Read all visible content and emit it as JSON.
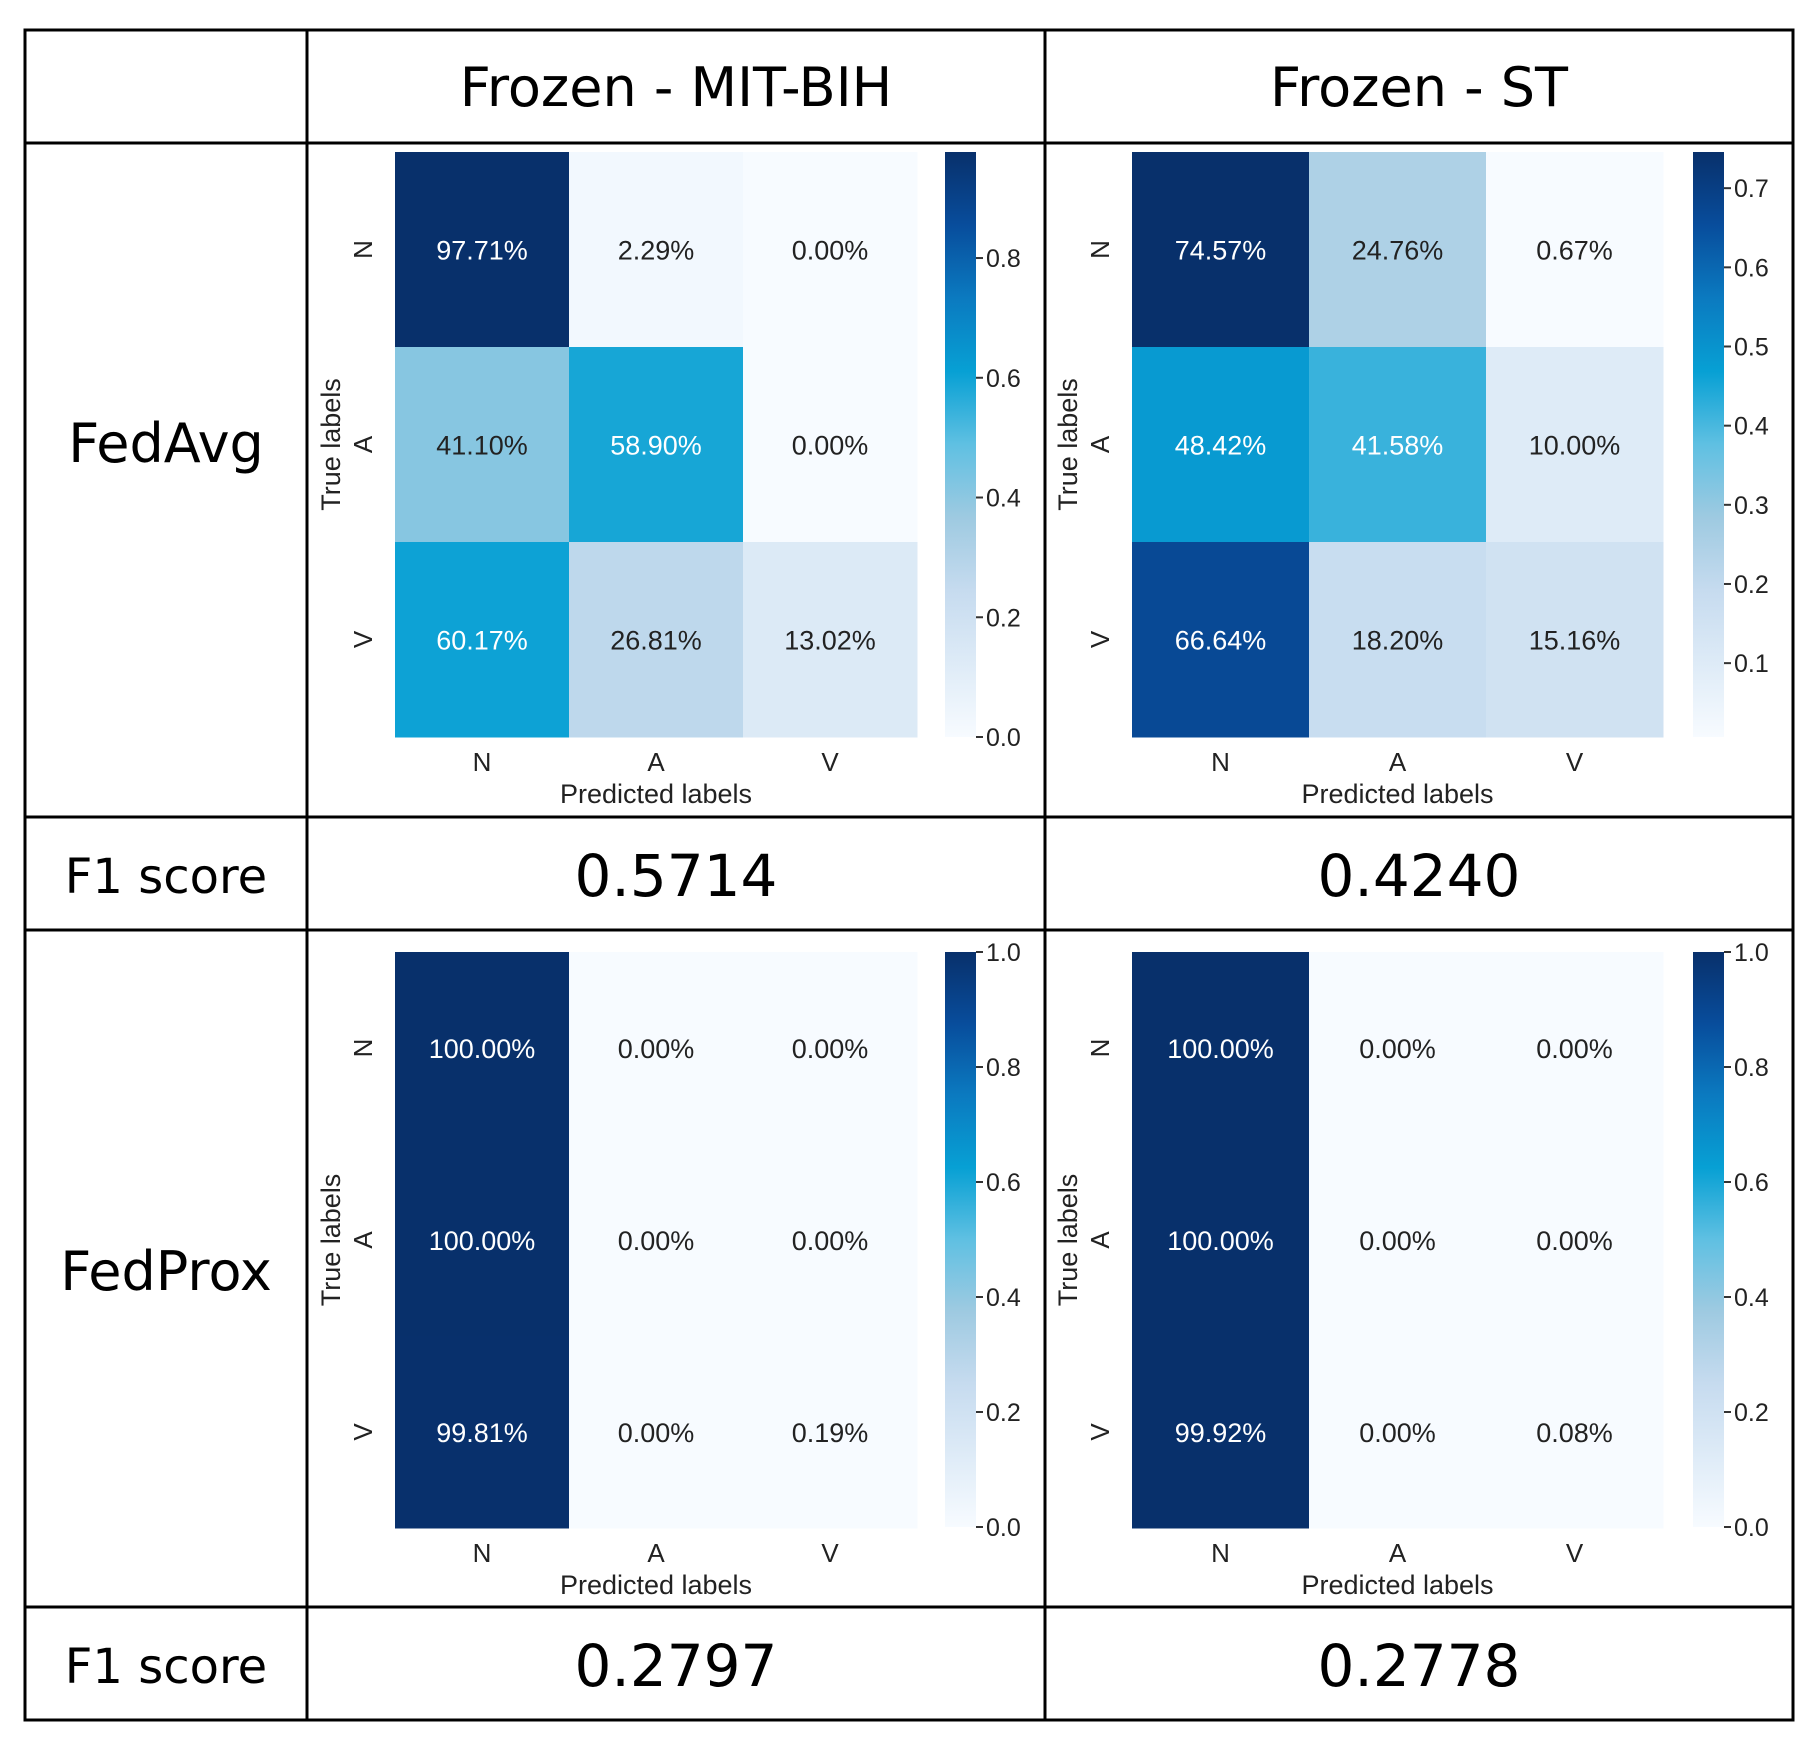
{
  "table": {
    "col_headers": [
      "Frozen - MIT-BIH",
      "Frozen - ST"
    ],
    "row_labels": [
      "FedAvg",
      "FedProx"
    ],
    "f1_label": "F1 score",
    "f1_scores": [
      [
        "0.5714",
        "0.4240"
      ],
      [
        "0.2797",
        "0.2778"
      ]
    ]
  },
  "colormap": "Blues",
  "chart_data": [
    {
      "type": "heatmap",
      "method": "FedAvg",
      "dataset": "Frozen - MIT-BIH",
      "xlabel": "Predicted labels",
      "ylabel": "True labels",
      "x_categories": [
        "N",
        "A",
        "V"
      ],
      "y_categories": [
        "N",
        "A",
        "V"
      ],
      "values": [
        [
          97.71,
          2.29,
          0.0
        ],
        [
          41.1,
          58.9,
          0.0
        ],
        [
          60.17,
          26.81,
          13.02
        ]
      ],
      "cell_labels": [
        [
          "97.71%",
          "2.29%",
          "0.00%"
        ],
        [
          "41.10%",
          "58.90%",
          "0.00%"
        ],
        [
          "60.17%",
          "26.81%",
          "13.02%"
        ]
      ],
      "colorbar": {
        "min": 0.0,
        "max": 0.9771,
        "ticks": [
          "0.0",
          "0.2",
          "0.4",
          "0.6",
          "0.8"
        ]
      }
    },
    {
      "type": "heatmap",
      "method": "FedAvg",
      "dataset": "Frozen - ST",
      "xlabel": "Predicted labels",
      "ylabel": "True labels",
      "x_categories": [
        "N",
        "A",
        "V"
      ],
      "y_categories": [
        "N",
        "A",
        "V"
      ],
      "values": [
        [
          74.57,
          24.76,
          0.67
        ],
        [
          48.42,
          41.58,
          10.0
        ],
        [
          66.64,
          18.2,
          15.16
        ]
      ],
      "cell_labels": [
        [
          "74.57%",
          "24.76%",
          "0.67%"
        ],
        [
          "48.42%",
          "41.58%",
          "10.00%"
        ],
        [
          "66.64%",
          "18.20%",
          "15.16%"
        ]
      ],
      "colorbar": {
        "min": 0.0067,
        "max": 0.7457,
        "ticks": [
          "0.1",
          "0.2",
          "0.3",
          "0.4",
          "0.5",
          "0.6",
          "0.7"
        ]
      }
    },
    {
      "type": "heatmap",
      "method": "FedProx",
      "dataset": "Frozen - MIT-BIH",
      "xlabel": "Predicted labels",
      "ylabel": "True labels",
      "x_categories": [
        "N",
        "A",
        "V"
      ],
      "y_categories": [
        "N",
        "A",
        "V"
      ],
      "values": [
        [
          100.0,
          0.0,
          0.0
        ],
        [
          100.0,
          0.0,
          0.0
        ],
        [
          99.81,
          0.0,
          0.19
        ]
      ],
      "cell_labels": [
        [
          "100.00%",
          "0.00%",
          "0.00%"
        ],
        [
          "100.00%",
          "0.00%",
          "0.00%"
        ],
        [
          "99.81%",
          "0.00%",
          "0.19%"
        ]
      ],
      "colorbar": {
        "min": 0.0,
        "max": 1.0,
        "ticks": [
          "0.0",
          "0.2",
          "0.4",
          "0.6",
          "0.8",
          "1.0"
        ]
      }
    },
    {
      "type": "heatmap",
      "method": "FedProx",
      "dataset": "Frozen - ST",
      "xlabel": "Predicted labels",
      "ylabel": "True labels",
      "x_categories": [
        "N",
        "A",
        "V"
      ],
      "y_categories": [
        "N",
        "A",
        "V"
      ],
      "values": [
        [
          100.0,
          0.0,
          0.0
        ],
        [
          100.0,
          0.0,
          0.0
        ],
        [
          99.92,
          0.0,
          0.08
        ]
      ],
      "cell_labels": [
        [
          "100.00%",
          "0.00%",
          "0.00%"
        ],
        [
          "100.00%",
          "0.00%",
          "0.00%"
        ],
        [
          "99.92%",
          "0.00%",
          "0.08%"
        ]
      ],
      "colorbar": {
        "min": 0.0,
        "max": 1.0,
        "ticks": [
          "0.0",
          "0.2",
          "0.4",
          "0.6",
          "0.8",
          "1.0"
        ]
      }
    }
  ]
}
